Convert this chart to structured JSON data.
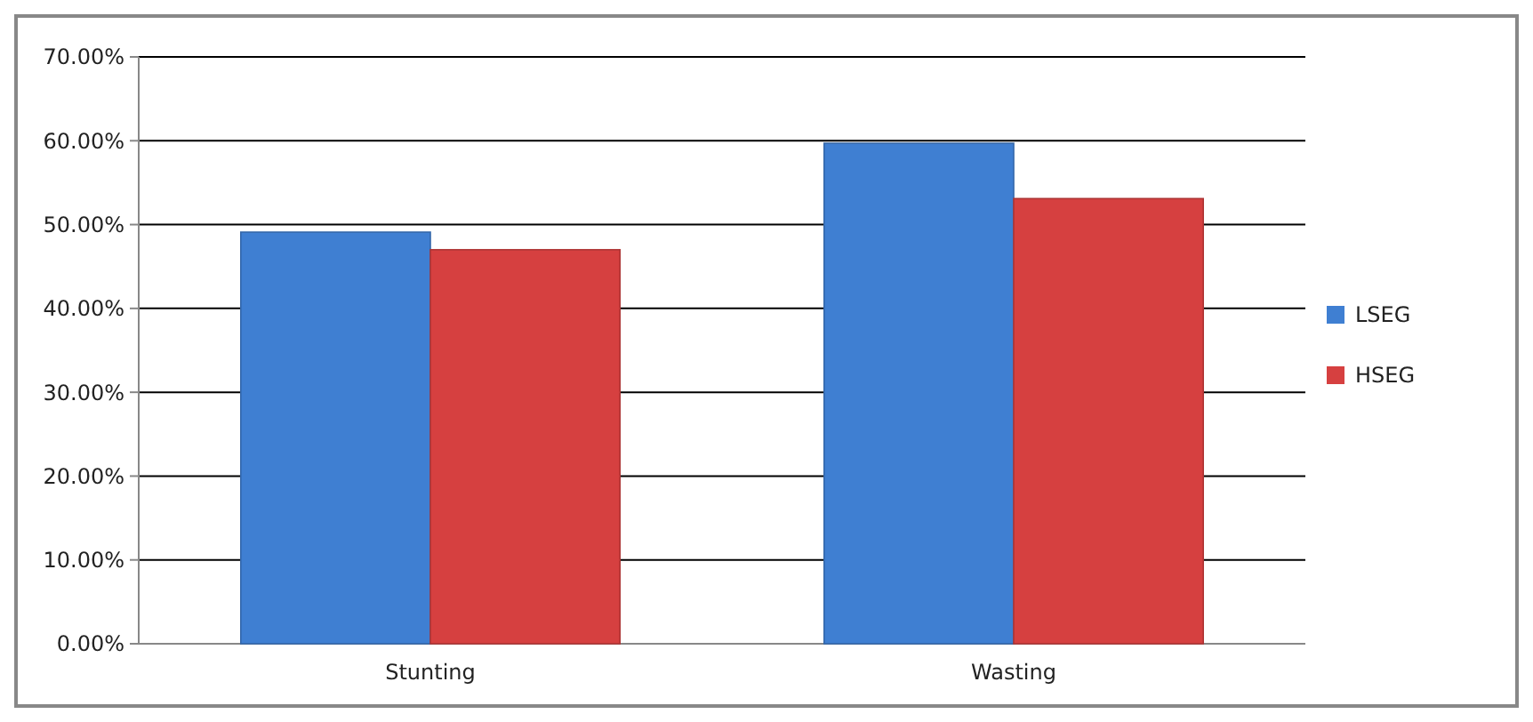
{
  "chart_data": {
    "type": "bar",
    "categories": [
      "Stunting",
      "Wasting"
    ],
    "series": [
      {
        "name": "LSEG",
        "color": "#3f7fd2",
        "values": [
          49.1,
          59.7
        ]
      },
      {
        "name": "HSEG",
        "color": "#d64040",
        "values": [
          47.0,
          53.1
        ]
      }
    ],
    "ylim": [
      0,
      70
    ],
    "yticks": [
      {
        "value": 0,
        "label": "0.00%"
      },
      {
        "value": 10,
        "label": "10.00%"
      },
      {
        "value": 20,
        "label": "20.00%"
      },
      {
        "value": 30,
        "label": "30.00%"
      },
      {
        "value": 40,
        "label": "40.00%"
      },
      {
        "value": 50,
        "label": "50.00%"
      },
      {
        "value": 60,
        "label": "60.00%"
      },
      {
        "value": 70,
        "label": "70.00%"
      }
    ],
    "grid": "y",
    "legend": "right"
  }
}
